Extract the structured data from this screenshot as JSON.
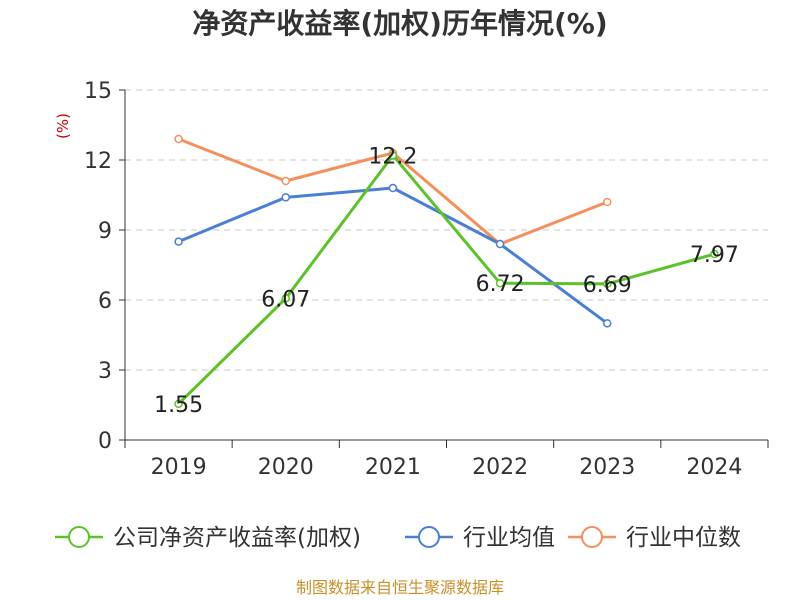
{
  "chart_data": {
    "type": "line",
    "title": "净资产收益率(加权)历年情况(%)",
    "ylabel": "(%)",
    "xlabel": "",
    "categories": [
      "2019",
      "2020",
      "2021",
      "2022",
      "2023",
      "2024"
    ],
    "ylim": [
      0,
      15
    ],
    "yticks": [
      "0",
      "3",
      "6",
      "9",
      "12",
      "15"
    ],
    "grid": true,
    "legend_position": "bottom",
    "series": [
      {
        "name": "公司净资产收益率(加权)",
        "color": "#5bc228",
        "values": [
          1.55,
          6.07,
          12.2,
          6.72,
          6.69,
          7.97
        ],
        "labels": [
          "1.55",
          "6.07",
          "12.2",
          "6.72",
          "6.69",
          "7.97"
        ],
        "show_labels": true
      },
      {
        "name": "行业均值",
        "color": "#4a7fd4",
        "values": [
          8.5,
          10.4,
          10.8,
          8.4,
          5.0,
          null
        ],
        "show_labels": false
      },
      {
        "name": "行业中位数",
        "color": "#f58f5c",
        "values": [
          12.9,
          11.1,
          12.3,
          8.4,
          10.2,
          null
        ],
        "show_labels": false
      }
    ]
  },
  "source": "制图数据来自恒生聚源数据库"
}
